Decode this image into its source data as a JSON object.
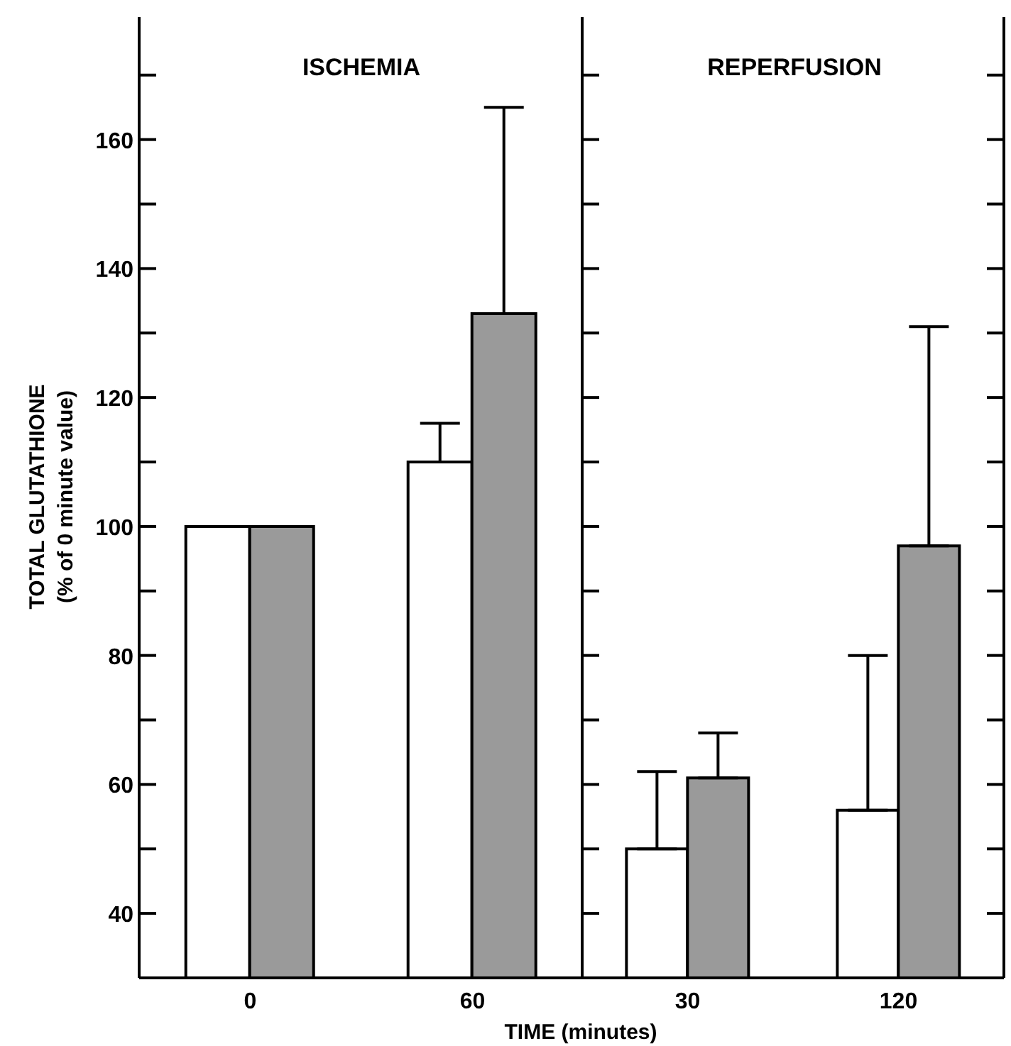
{
  "chart_data": [
    {
      "type": "bar",
      "title": "ISCHEMIA",
      "xlabel": "TIME (minutes)",
      "ylabel": "TOTAL GLUTATHIONE\n(% of 0 minute value)",
      "categories": [
        "0",
        "60"
      ],
      "series": [
        {
          "color": "#ffffff",
          "values": [
            100,
            110
          ],
          "errors": [
            null,
            [
              110,
              116
            ]
          ]
        },
        {
          "color": "#9a9a9a",
          "values": [
            100,
            133
          ],
          "errors": [
            null,
            [
              133,
              165
            ]
          ]
        }
      ],
      "ylim": [
        30,
        179
      ],
      "yticks": [
        40,
        {
          "value": 50,
          "label": null
        },
        60,
        {
          "value": 70,
          "label": null
        },
        80,
        {
          "value": 90,
          "label": null
        },
        100,
        {
          "value": 110,
          "label": null
        },
        120,
        {
          "value": 130,
          "label": null
        },
        140,
        {
          "value": 150,
          "label": null
        },
        160,
        {
          "value": 170,
          "label": null
        }
      ]
    },
    {
      "type": "bar",
      "title": "REPERFUSION",
      "categories": [
        "30",
        "120"
      ],
      "series": [
        {
          "color": "#ffffff",
          "values": [
            50,
            56
          ],
          "errors": [
            [
              50,
              62
            ],
            [
              56,
              80
            ]
          ]
        },
        {
          "color": "#9a9a9a",
          "values": [
            61,
            97
          ],
          "errors": [
            [
              61,
              68
            ],
            [
              97,
              131
            ]
          ]
        }
      ],
      "ylim": [
        30,
        179
      ],
      "yticks": [
        40,
        {
          "value": 50,
          "label": null
        },
        60,
        {
          "value": 70,
          "label": null
        },
        80,
        {
          "value": 90,
          "label": null
        },
        100,
        {
          "value": 110,
          "label": null
        },
        120,
        {
          "value": 130,
          "label": null
        },
        140,
        {
          "value": 150,
          "label": null
        },
        160,
        {
          "value": 170,
          "label": null
        }
      ],
      "tick_labels": "x"
    }
  ]
}
